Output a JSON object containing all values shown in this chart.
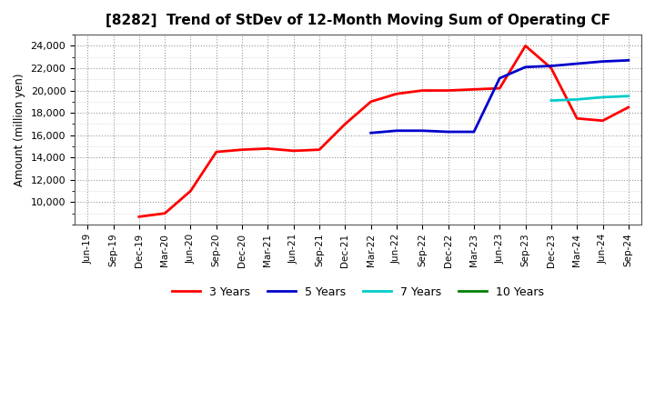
{
  "title": "[8282]  Trend of StDev of 12-Month Moving Sum of Operating CF",
  "ylabel": "Amount (million yen)",
  "ylim": [
    8000,
    25000
  ],
  "yticks": [
    10000,
    12000,
    14000,
    16000,
    18000,
    20000,
    22000,
    24000
  ],
  "background_color": "#ffffff",
  "plot_bg_color": "#ffffff",
  "x_labels": [
    "Jun-19",
    "Sep-19",
    "Dec-19",
    "Mar-20",
    "Jun-20",
    "Sep-20",
    "Dec-20",
    "Mar-21",
    "Jun-21",
    "Sep-21",
    "Dec-21",
    "Mar-22",
    "Jun-22",
    "Sep-22",
    "Dec-22",
    "Mar-23",
    "Jun-23",
    "Sep-23",
    "Dec-23",
    "Mar-24",
    "Jun-24",
    "Sep-24"
  ],
  "series_3yr": {
    "x": [
      2,
      3,
      4,
      5,
      6,
      7,
      8,
      9,
      10,
      11,
      12,
      13,
      14,
      15,
      16,
      17,
      18,
      19,
      20,
      21
    ],
    "y": [
      8700,
      9000,
      11000,
      14500,
      14700,
      14800,
      14600,
      14700,
      17000,
      19000,
      19700,
      20000,
      20000,
      20100,
      20200,
      24000,
      22000,
      17500,
      17300,
      18500
    ],
    "color": "#ff0000",
    "label": "3 Years",
    "linewidth": 2.0
  },
  "series_5yr": {
    "x": [
      11,
      12,
      13,
      14,
      15,
      16,
      17,
      18,
      19,
      20,
      21
    ],
    "y": [
      16200,
      16400,
      16400,
      16300,
      16300,
      21100,
      22100,
      22200,
      22400,
      22600,
      22700
    ],
    "color": "#0000cc",
    "label": "5 Years",
    "linewidth": 2.0
  },
  "series_7yr": {
    "x": [
      18,
      19,
      20,
      21
    ],
    "y": [
      19100,
      19200,
      19400,
      19500
    ],
    "color": "#00cccc",
    "label": "7 Years",
    "linewidth": 2.0
  },
  "series_10yr": {
    "x": [],
    "y": [],
    "color": "#008000",
    "label": "10 Years",
    "linewidth": 2.0
  },
  "legend_colors": [
    "#ff0000",
    "#0000cc",
    "#00cccc",
    "#008000"
  ],
  "legend_labels": [
    "3 Years",
    "5 Years",
    "7 Years",
    "10 Years"
  ]
}
